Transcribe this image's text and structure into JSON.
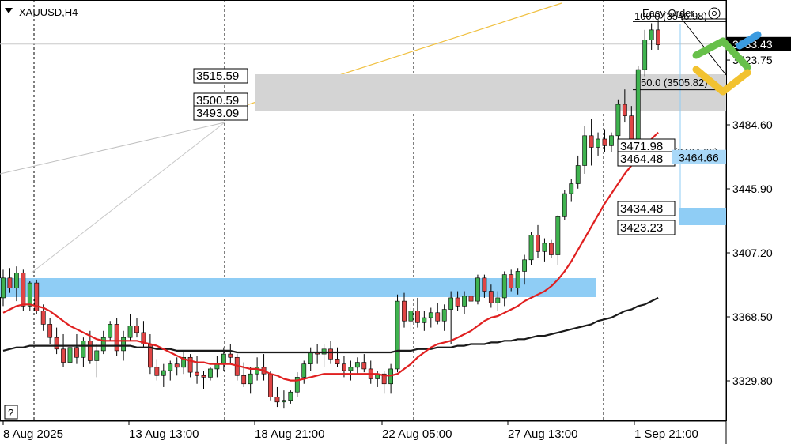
{
  "symbol_label": "XAUUSD,H4",
  "easy_order_label": "Easy Order",
  "help_label": "?",
  "price_axis": {
    "ticks": [
      3329.8,
      3368.5,
      3407.2,
      3445.9,
      3484.6,
      3523.75
    ],
    "tick_labels": [
      "3329.80",
      "3368.50",
      "3407.20",
      "3445.90",
      "3484.60",
      "3523.75"
    ],
    "current_price_label": "3533.43",
    "current_price": 3533.43,
    "highlight_label": "3464.66",
    "highlight_price": 3464.66
  },
  "time_axis": {
    "labels": [
      "8 Aug 2025",
      "13 Aug 13:00",
      "18 Aug 21:00",
      "22 Aug 05:00",
      "27 Aug 13:00",
      "1 Sep 21:00"
    ]
  },
  "annotations": {
    "gray_zone_labels": [
      "3515.59",
      "3500.59",
      "3493.09"
    ],
    "fib_labels": [
      "100.0 (3546.98)",
      "50.0 (3505.82)",
      "0.0 (3464.66)"
    ],
    "right_labels": [
      "3471.98",
      "3464.48",
      "3434.48",
      "3423.23"
    ]
  },
  "colors": {
    "bull": "#3fb34f",
    "bear": "#e04545",
    "ma_fast": "#e02020",
    "ma_slow": "#1a1a1a",
    "blue_zone": "#8fcdf5",
    "gray_zone": "#d4d4d4",
    "trendline": "#f0c040",
    "brand_green": "#67c04a",
    "brand_yellow": "#f2c230",
    "brand_blue": "#3b9be0"
  },
  "chart_data": {
    "type": "candlestick",
    "title": "XAUUSD,H4",
    "ylim": [
      3315,
      3555
    ],
    "candles": [
      {
        "o": 3380,
        "h": 3397,
        "l": 3375,
        "c": 3392
      },
      {
        "o": 3392,
        "h": 3398,
        "l": 3383,
        "c": 3386
      },
      {
        "o": 3386,
        "h": 3399,
        "l": 3378,
        "c": 3395
      },
      {
        "o": 3395,
        "h": 3397,
        "l": 3372,
        "c": 3375
      },
      {
        "o": 3375,
        "h": 3390,
        "l": 3372,
        "c": 3389
      },
      {
        "o": 3389,
        "h": 3391,
        "l": 3370,
        "c": 3372
      },
      {
        "o": 3372,
        "h": 3376,
        "l": 3360,
        "c": 3364
      },
      {
        "o": 3364,
        "h": 3368,
        "l": 3352,
        "c": 3356
      },
      {
        "o": 3356,
        "h": 3362,
        "l": 3346,
        "c": 3349
      },
      {
        "o": 3349,
        "h": 3358,
        "l": 3338,
        "c": 3341
      },
      {
        "o": 3341,
        "h": 3352,
        "l": 3338,
        "c": 3350
      },
      {
        "o": 3350,
        "h": 3358,
        "l": 3340,
        "c": 3344
      },
      {
        "o": 3344,
        "h": 3356,
        "l": 3338,
        "c": 3354
      },
      {
        "o": 3354,
        "h": 3360,
        "l": 3340,
        "c": 3342
      },
      {
        "o": 3342,
        "h": 3352,
        "l": 3332,
        "c": 3348
      },
      {
        "o": 3348,
        "h": 3360,
        "l": 3346,
        "c": 3356
      },
      {
        "o": 3356,
        "h": 3366,
        "l": 3354,
        "c": 3364
      },
      {
        "o": 3364,
        "h": 3368,
        "l": 3345,
        "c": 3348
      },
      {
        "o": 3348,
        "h": 3360,
        "l": 3342,
        "c": 3356
      },
      {
        "o": 3356,
        "h": 3370,
        "l": 3354,
        "c": 3363
      },
      {
        "o": 3363,
        "h": 3368,
        "l": 3356,
        "c": 3359
      },
      {
        "o": 3359,
        "h": 3366,
        "l": 3350,
        "c": 3352
      },
      {
        "o": 3352,
        "h": 3358,
        "l": 3334,
        "c": 3338
      },
      {
        "o": 3338,
        "h": 3343,
        "l": 3330,
        "c": 3333
      },
      {
        "o": 3333,
        "h": 3340,
        "l": 3326,
        "c": 3336
      },
      {
        "o": 3336,
        "h": 3342,
        "l": 3330,
        "c": 3340
      },
      {
        "o": 3340,
        "h": 3344,
        "l": 3333,
        "c": 3338
      },
      {
        "o": 3338,
        "h": 3348,
        "l": 3334,
        "c": 3344
      },
      {
        "o": 3344,
        "h": 3346,
        "l": 3332,
        "c": 3335
      },
      {
        "o": 3335,
        "h": 3345,
        "l": 3328,
        "c": 3333
      },
      {
        "o": 3333,
        "h": 3336,
        "l": 3325,
        "c": 3332
      },
      {
        "o": 3332,
        "h": 3338,
        "l": 3330,
        "c": 3337
      },
      {
        "o": 3337,
        "h": 3345,
        "l": 3332,
        "c": 3340
      },
      {
        "o": 3340,
        "h": 3350,
        "l": 3336,
        "c": 3346
      },
      {
        "o": 3346,
        "h": 3352,
        "l": 3340,
        "c": 3344
      },
      {
        "o": 3344,
        "h": 3346,
        "l": 3330,
        "c": 3333
      },
      {
        "o": 3333,
        "h": 3341,
        "l": 3326,
        "c": 3328
      },
      {
        "o": 3328,
        "h": 3338,
        "l": 3322,
        "c": 3334
      },
      {
        "o": 3334,
        "h": 3344,
        "l": 3330,
        "c": 3338
      },
      {
        "o": 3338,
        "h": 3346,
        "l": 3330,
        "c": 3334
      },
      {
        "o": 3334,
        "h": 3336,
        "l": 3318,
        "c": 3320
      },
      {
        "o": 3320,
        "h": 3326,
        "l": 3314,
        "c": 3317
      },
      {
        "o": 3317,
        "h": 3324,
        "l": 3313,
        "c": 3318
      },
      {
        "o": 3318,
        "h": 3324,
        "l": 3316,
        "c": 3323
      },
      {
        "o": 3323,
        "h": 3335,
        "l": 3320,
        "c": 3332
      },
      {
        "o": 3332,
        "h": 3342,
        "l": 3328,
        "c": 3340
      },
      {
        "o": 3340,
        "h": 3350,
        "l": 3336,
        "c": 3347
      },
      {
        "o": 3347,
        "h": 3352,
        "l": 3340,
        "c": 3346
      },
      {
        "o": 3346,
        "h": 3352,
        "l": 3338,
        "c": 3349
      },
      {
        "o": 3349,
        "h": 3354,
        "l": 3340,
        "c": 3343
      },
      {
        "o": 3343,
        "h": 3350,
        "l": 3338,
        "c": 3340
      },
      {
        "o": 3340,
        "h": 3345,
        "l": 3332,
        "c": 3336
      },
      {
        "o": 3336,
        "h": 3342,
        "l": 3330,
        "c": 3338
      },
      {
        "o": 3338,
        "h": 3344,
        "l": 3334,
        "c": 3341
      },
      {
        "o": 3341,
        "h": 3346,
        "l": 3335,
        "c": 3337
      },
      {
        "o": 3337,
        "h": 3342,
        "l": 3328,
        "c": 3331
      },
      {
        "o": 3331,
        "h": 3336,
        "l": 3326,
        "c": 3334
      },
      {
        "o": 3334,
        "h": 3336,
        "l": 3322,
        "c": 3328
      },
      {
        "o": 3328,
        "h": 3340,
        "l": 3322,
        "c": 3337
      },
      {
        "o": 3337,
        "h": 3382,
        "l": 3335,
        "c": 3378
      },
      {
        "o": 3378,
        "h": 3383,
        "l": 3362,
        "c": 3366
      },
      {
        "o": 3366,
        "h": 3374,
        "l": 3360,
        "c": 3372
      },
      {
        "o": 3372,
        "h": 3380,
        "l": 3362,
        "c": 3365
      },
      {
        "o": 3365,
        "h": 3372,
        "l": 3360,
        "c": 3368
      },
      {
        "o": 3368,
        "h": 3374,
        "l": 3362,
        "c": 3371
      },
      {
        "o": 3371,
        "h": 3377,
        "l": 3364,
        "c": 3366
      },
      {
        "o": 3366,
        "h": 3376,
        "l": 3360,
        "c": 3373
      },
      {
        "o": 3373,
        "h": 3384,
        "l": 3352,
        "c": 3380
      },
      {
        "o": 3380,
        "h": 3384,
        "l": 3372,
        "c": 3375
      },
      {
        "o": 3375,
        "h": 3384,
        "l": 3370,
        "c": 3381
      },
      {
        "o": 3381,
        "h": 3386,
        "l": 3374,
        "c": 3378
      },
      {
        "o": 3378,
        "h": 3394,
        "l": 3376,
        "c": 3392
      },
      {
        "o": 3392,
        "h": 3394,
        "l": 3380,
        "c": 3384
      },
      {
        "o": 3384,
        "h": 3388,
        "l": 3374,
        "c": 3377
      },
      {
        "o": 3377,
        "h": 3384,
        "l": 3372,
        "c": 3380
      },
      {
        "o": 3380,
        "h": 3396,
        "l": 3375,
        "c": 3394
      },
      {
        "o": 3394,
        "h": 3397,
        "l": 3384,
        "c": 3386
      },
      {
        "o": 3386,
        "h": 3398,
        "l": 3382,
        "c": 3396
      },
      {
        "o": 3396,
        "h": 3406,
        "l": 3388,
        "c": 3403
      },
      {
        "o": 3403,
        "h": 3420,
        "l": 3400,
        "c": 3418
      },
      {
        "o": 3418,
        "h": 3424,
        "l": 3404,
        "c": 3408
      },
      {
        "o": 3408,
        "h": 3416,
        "l": 3402,
        "c": 3413
      },
      {
        "o": 3413,
        "h": 3415,
        "l": 3404,
        "c": 3406
      },
      {
        "o": 3406,
        "h": 3430,
        "l": 3400,
        "c": 3429
      },
      {
        "o": 3429,
        "h": 3445,
        "l": 3427,
        "c": 3443
      },
      {
        "o": 3443,
        "h": 3452,
        "l": 3438,
        "c": 3449
      },
      {
        "o": 3449,
        "h": 3466,
        "l": 3446,
        "c": 3460
      },
      {
        "o": 3460,
        "h": 3484,
        "l": 3455,
        "c": 3478
      },
      {
        "o": 3478,
        "h": 3488,
        "l": 3460,
        "c": 3471
      },
      {
        "o": 3471,
        "h": 3480,
        "l": 3466,
        "c": 3476
      },
      {
        "o": 3476,
        "h": 3482,
        "l": 3468,
        "c": 3472
      },
      {
        "o": 3472,
        "h": 3480,
        "l": 3468,
        "c": 3478
      },
      {
        "o": 3478,
        "h": 3500,
        "l": 3474,
        "c": 3497
      },
      {
        "o": 3497,
        "h": 3506,
        "l": 3486,
        "c": 3490
      },
      {
        "o": 3490,
        "h": 3496,
        "l": 3468,
        "c": 3474
      },
      {
        "o": 3474,
        "h": 3520,
        "l": 3472,
        "c": 3518
      },
      {
        "o": 3518,
        "h": 3542,
        "l": 3514,
        "c": 3536
      },
      {
        "o": 3536,
        "h": 3546,
        "l": 3530,
        "c": 3542
      },
      {
        "o": 3542,
        "h": 3548,
        "l": 3530,
        "c": 3533
      }
    ],
    "ma_fast": [
      3371,
      3373,
      3375,
      3376,
      3376,
      3375,
      3374,
      3372,
      3369,
      3366,
      3363,
      3361,
      3359,
      3357,
      3355,
      3354,
      3354,
      3354,
      3354,
      3354,
      3354,
      3353,
      3352,
      3351,
      3349,
      3347,
      3345,
      3343,
      3342,
      3341,
      3341,
      3340,
      3340,
      3340,
      3340,
      3339,
      3338,
      3337,
      3337,
      3336,
      3334,
      3333,
      3331,
      3330,
      3330,
      3331,
      3332,
      3333,
      3334,
      3334,
      3334,
      3334,
      3334,
      3334,
      3334,
      3334,
      3334,
      3333,
      3333,
      3334,
      3337,
      3340,
      3344,
      3347,
      3350,
      3352,
      3353,
      3354,
      3356,
      3358,
      3360,
      3363,
      3366,
      3368,
      3369,
      3371,
      3373,
      3375,
      3378,
      3380,
      3382,
      3384,
      3387,
      3391,
      3396,
      3402,
      3409,
      3416,
      3423,
      3430,
      3437,
      3443,
      3449,
      3455,
      3460,
      3465,
      3471,
      3476,
      3480
    ],
    "ma_slow": [
      3348,
      3349,
      3350,
      3350,
      3351,
      3351,
      3351,
      3351,
      3351,
      3351,
      3351,
      3351,
      3351,
      3351,
      3351,
      3351,
      3351,
      3351,
      3351,
      3351,
      3350,
      3350,
      3350,
      3349,
      3349,
      3349,
      3348,
      3348,
      3348,
      3348,
      3348,
      3348,
      3348,
      3348,
      3348,
      3347,
      3347,
      3347,
      3347,
      3347,
      3347,
      3347,
      3347,
      3347,
      3347,
      3347,
      3347,
      3347,
      3347,
      3347,
      3347,
      3347,
      3347,
      3347,
      3347,
      3347,
      3347,
      3347,
      3347,
      3348,
      3348,
      3348,
      3349,
      3349,
      3349,
      3350,
      3350,
      3350,
      3351,
      3351,
      3352,
      3352,
      3352,
      3353,
      3353,
      3354,
      3354,
      3355,
      3355,
      3356,
      3357,
      3357,
      3358,
      3359,
      3360,
      3361,
      3362,
      3363,
      3364,
      3366,
      3367,
      3368,
      3370,
      3372,
      3373,
      3375,
      3376,
      3378,
      3380
    ]
  }
}
